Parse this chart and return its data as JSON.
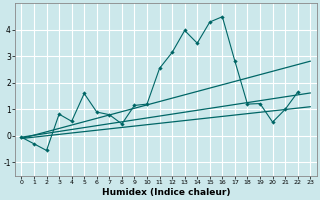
{
  "title": "",
  "xlabel": "Humidex (Indice chaleur)",
  "ylabel": "",
  "bg_color": "#cce8eb",
  "line_color": "#006666",
  "grid_color": "#ffffff",
  "xlim": [
    -0.5,
    23.5
  ],
  "ylim": [
    -1.5,
    5.0
  ],
  "yticks": [
    -1,
    0,
    1,
    2,
    3,
    4
  ],
  "xticks": [
    0,
    1,
    2,
    3,
    4,
    5,
    6,
    7,
    8,
    9,
    10,
    11,
    12,
    13,
    14,
    15,
    16,
    17,
    18,
    19,
    20,
    21,
    22,
    23
  ],
  "series1_x": [
    0,
    1,
    2,
    3,
    4,
    5,
    6,
    7,
    8,
    9,
    10,
    11,
    12,
    13,
    14,
    15,
    16,
    17,
    18,
    19,
    20,
    21,
    22
  ],
  "series1_y": [
    -0.05,
    -0.3,
    -0.55,
    0.82,
    0.55,
    1.6,
    0.9,
    0.8,
    0.45,
    1.15,
    1.2,
    2.55,
    3.15,
    3.98,
    3.5,
    4.3,
    4.5,
    2.82,
    1.2,
    1.22,
    0.52,
    1.0,
    1.65
  ],
  "series2_x": [
    0,
    23
  ],
  "series2_y": [
    -0.1,
    1.1
  ],
  "series3_x": [
    0,
    23
  ],
  "series3_y": [
    -0.1,
    2.82
  ],
  "series4_x": [
    0,
    23
  ],
  "series4_y": [
    -0.05,
    1.62
  ]
}
